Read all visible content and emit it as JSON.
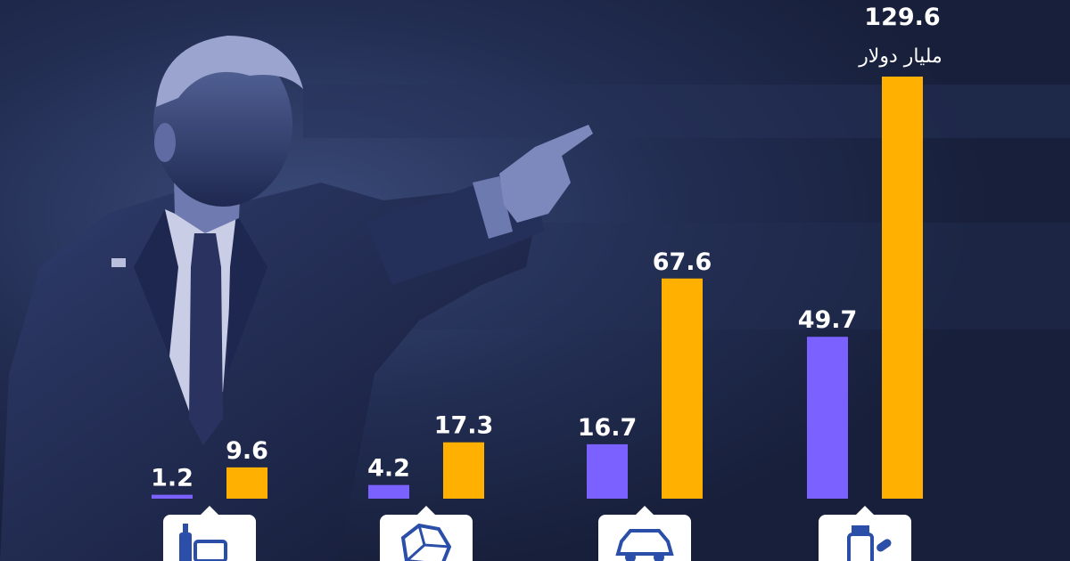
{
  "chart_data": {
    "type": "bar",
    "categories": [
      "food-and-beverages",
      "materials",
      "cars",
      "medicines"
    ],
    "series": [
      {
        "values": [
          1.2,
          4.2,
          16.7,
          49.7
        ],
        "color": "#7b61ff"
      },
      {
        "values": [
          9.6,
          17.3,
          67.6,
          129.6
        ],
        "color": "#ffb000"
      }
    ],
    "value_labels": [
      [
        "1.2",
        "4.2",
        "16.7",
        "49.7"
      ],
      [
        "9.6",
        "17.3",
        "67.6",
        "129.6"
      ]
    ],
    "unit_label": "مليار دولار",
    "ylim": [
      0,
      129.6
    ],
    "grid": false,
    "legend": "none"
  },
  "category_icons": [
    "bottle-and-package-icon",
    "rock-icon",
    "car-icon",
    "pill-bottle-icon"
  ],
  "colors": {
    "background": "#1a2340",
    "series_a": "#7b61ff",
    "series_b": "#ffb000",
    "icon_tile": "#ffffff",
    "icon_glyph": "#2b4fa8"
  },
  "background_image": "photo-of-man-pointing"
}
